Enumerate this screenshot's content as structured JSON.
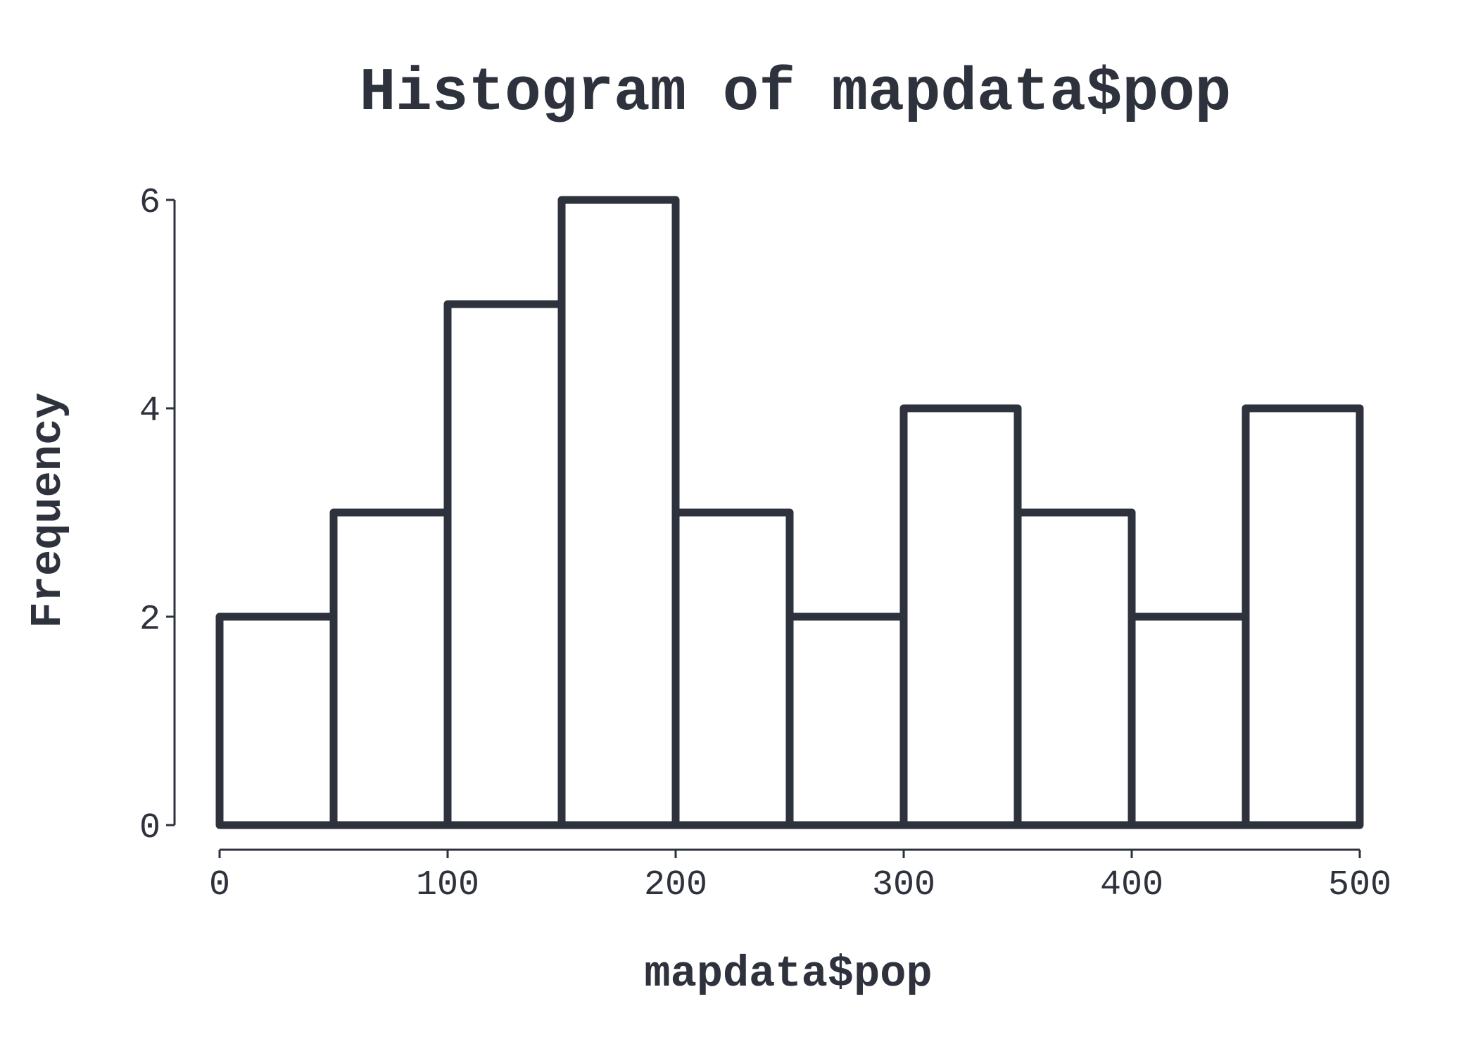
{
  "chart_data": {
    "type": "bar",
    "title": "Histogram of mapdata$pop",
    "xlabel": "mapdata$pop",
    "ylabel": "Frequency",
    "bins": [
      {
        "from": 0,
        "to": 50,
        "count": 2
      },
      {
        "from": 50,
        "to": 100,
        "count": 3
      },
      {
        "from": 100,
        "to": 150,
        "count": 5
      },
      {
        "from": 150,
        "to": 200,
        "count": 6
      },
      {
        "from": 200,
        "to": 250,
        "count": 3
      },
      {
        "from": 250,
        "to": 300,
        "count": 2
      },
      {
        "from": 300,
        "to": 350,
        "count": 4
      },
      {
        "from": 350,
        "to": 400,
        "count": 3
      },
      {
        "from": 400,
        "to": 450,
        "count": 2
      },
      {
        "from": 450,
        "to": 500,
        "count": 4
      }
    ],
    "xlim": [
      0,
      500
    ],
    "ylim": [
      0,
      6
    ],
    "xticks": [
      0,
      100,
      200,
      300,
      400,
      500
    ],
    "yticks": [
      0,
      2,
      4,
      6
    ],
    "grid": false,
    "colors": {
      "stroke": "#2e323d",
      "fill": "#ffffff"
    }
  }
}
